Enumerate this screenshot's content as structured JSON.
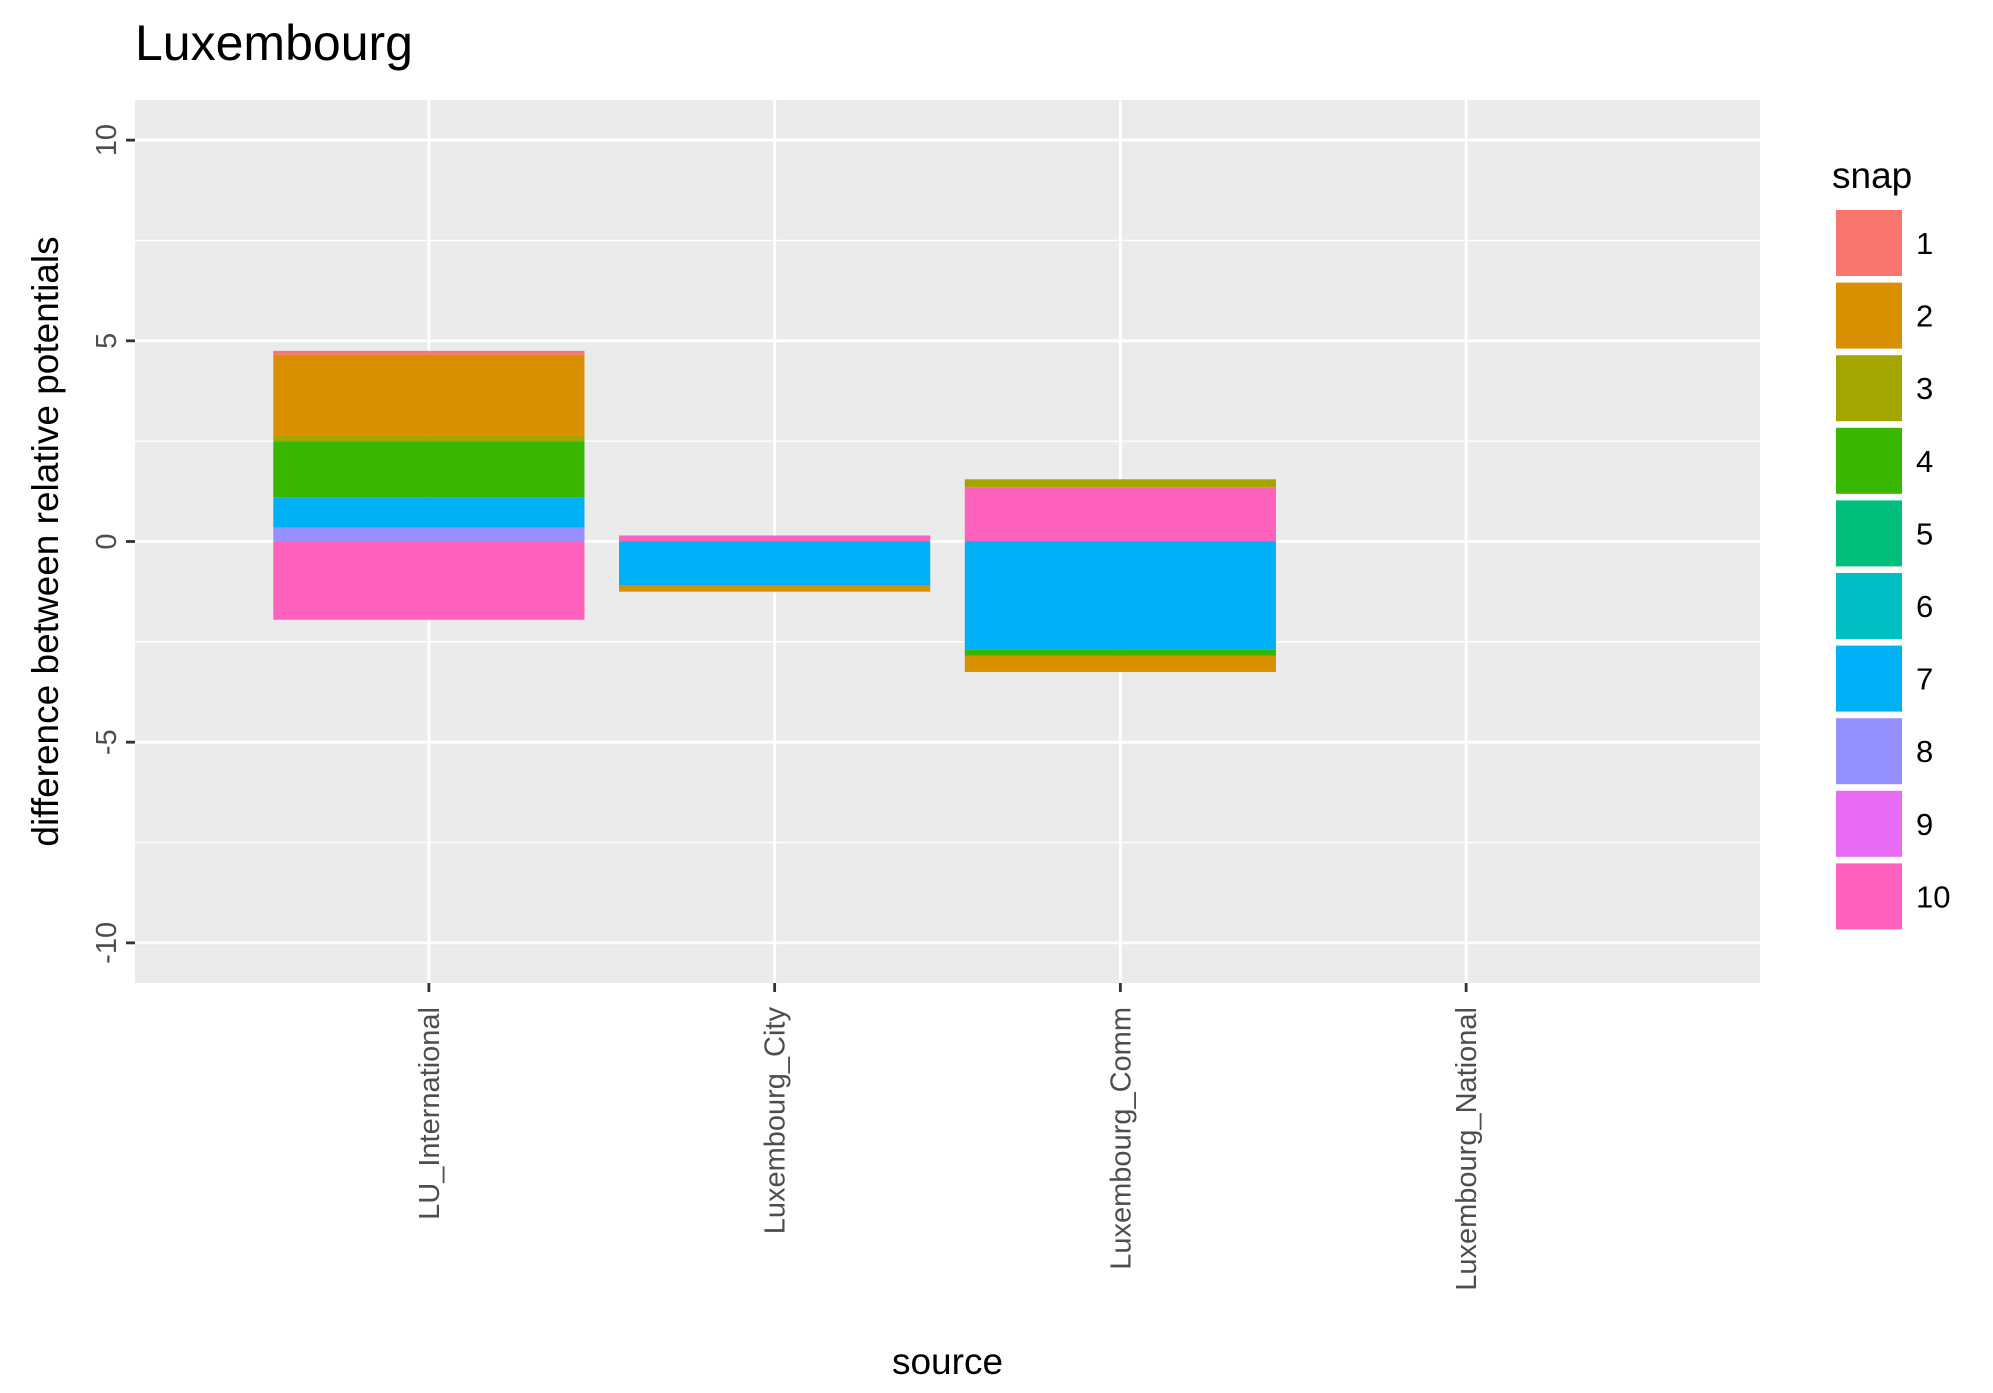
{
  "chart_data": {
    "type": "bar",
    "stacked": true,
    "title": "Luxembourg",
    "xlabel": "source",
    "ylabel": "difference between relative potentials",
    "ylim": [
      -11,
      11
    ],
    "yticks": [
      -10,
      -5,
      0,
      5,
      10
    ],
    "grid": true,
    "legend_position": "right",
    "categories": [
      "LU_International",
      "Luxembourg_City",
      "Luxembourg_Comm",
      "Luxembourg_National"
    ],
    "legend": {
      "title": "snap",
      "items": [
        {
          "label": "1",
          "color": "#F8766D"
        },
        {
          "label": "2",
          "color": "#D89000"
        },
        {
          "label": "3",
          "color": "#A3A500"
        },
        {
          "label": "4",
          "color": "#39B600"
        },
        {
          "label": "5",
          "color": "#00BF7D"
        },
        {
          "label": "6",
          "color": "#00BFC4"
        },
        {
          "label": "7",
          "color": "#00B0F6"
        },
        {
          "label": "8",
          "color": "#9590FF"
        },
        {
          "label": "9",
          "color": "#E76BF3"
        },
        {
          "label": "10",
          "color": "#FF62BC"
        }
      ]
    },
    "series": [
      {
        "name": "1",
        "color": "#F8766D",
        "values": [
          0.1,
          0,
          0,
          0
        ]
      },
      {
        "name": "2",
        "color": "#D89000",
        "values": [
          2.0,
          -0.15,
          -0.4,
          0
        ]
      },
      {
        "name": "3",
        "color": "#A3A500",
        "values": [
          0.15,
          0,
          0.2,
          0
        ]
      },
      {
        "name": "4",
        "color": "#39B600",
        "values": [
          1.4,
          0,
          -0.15,
          0
        ]
      },
      {
        "name": "5",
        "color": "#00BF7D",
        "values": [
          0,
          0,
          0,
          0
        ]
      },
      {
        "name": "6",
        "color": "#00BFC4",
        "values": [
          0,
          0,
          0,
          0
        ]
      },
      {
        "name": "7",
        "color": "#00B0F6",
        "values": [
          0.75,
          -1.1,
          -2.7,
          0
        ]
      },
      {
        "name": "8",
        "color": "#9590FF",
        "values": [
          0.35,
          0,
          0,
          0
        ]
      },
      {
        "name": "9",
        "color": "#E76BF3",
        "values": [
          0,
          0,
          0,
          0
        ]
      },
      {
        "name": "10",
        "color": "#FF62BC",
        "values": [
          -1.95,
          0.15,
          1.35,
          0
        ]
      }
    ]
  }
}
